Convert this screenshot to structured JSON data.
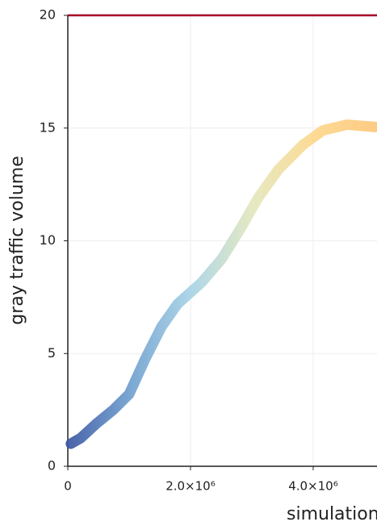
{
  "chart_data": {
    "type": "line",
    "ylabel": "gray traffic volume",
    "xlabel": "simulation",
    "x": [
      50000,
      210000,
      470000,
      740000,
      1000000,
      1260000,
      1530000,
      1790000,
      2180000,
      2510000,
      2840000,
      3100000,
      3430000,
      3830000,
      4160000,
      4550000,
      5010000
    ],
    "series": [
      {
        "color": [
          "#3a56a2",
          "#6f9fce",
          "#a7d3e6",
          "#e4e7bd",
          "#fdd78a",
          "#fdc67a"
        ],
        "values": [
          1.0,
          1.25,
          1.9,
          2.5,
          3.2,
          4.75,
          6.2,
          7.2,
          8.15,
          9.2,
          10.65,
          11.9,
          13.15,
          14.25,
          14.9,
          15.15,
          15.05
        ]
      }
    ],
    "xlim": [
      0,
      5040000
    ],
    "ylim": [
      0,
      20
    ],
    "xticks": [
      0,
      {
        "value": 2000000,
        "label": "2.0×10⁶"
      },
      {
        "value": 4000000,
        "label": "4.0×10⁶"
      }
    ],
    "yticks": [
      0,
      5,
      10,
      15,
      20
    ],
    "grid": true,
    "reference_line": {
      "value": 20,
      "color": "#a50026"
    }
  }
}
